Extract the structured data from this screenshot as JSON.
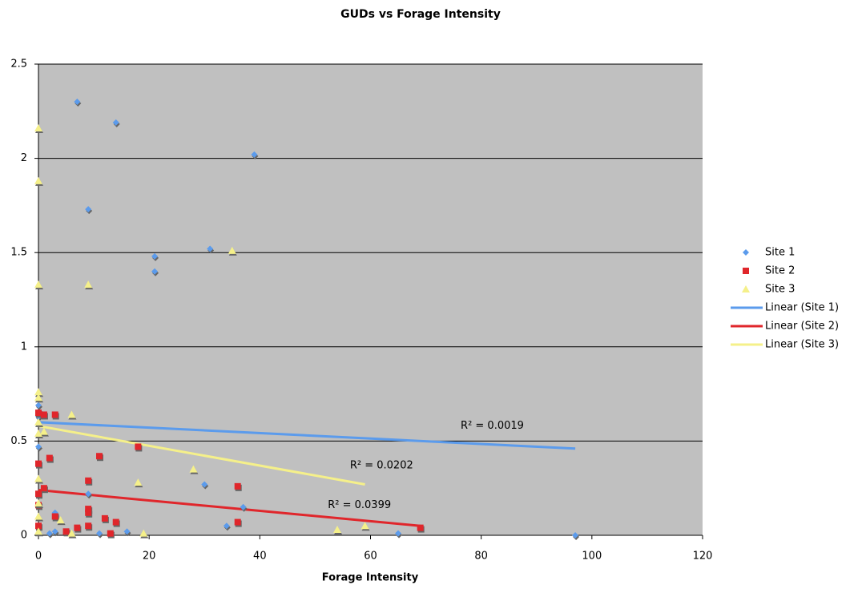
{
  "chart_data": {
    "type": "scatter",
    "title": "GUDs vs Forage Intensity",
    "x_label": "Forage Intensity",
    "xlim": [
      0,
      120
    ],
    "xticks": [
      0,
      20,
      40,
      60,
      80,
      100,
      120
    ],
    "ylim": [
      0,
      2.5
    ],
    "yticks": [
      0,
      0.5,
      1,
      1.5,
      2,
      2.5
    ],
    "grid": true,
    "legend": "right",
    "series": [
      {
        "name": "Site 1",
        "color": "#5b9bec",
        "marker": "diamond",
        "x": [
          7,
          14,
          39,
          9,
          21,
          21,
          31,
          0,
          0,
          0,
          9,
          30,
          37,
          34,
          3,
          2,
          3,
          11,
          16,
          65,
          97
        ],
        "values": [
          2.3,
          2.19,
          2.02,
          1.73,
          1.48,
          1.4,
          1.52,
          0.69,
          0.63,
          0.47,
          0.22,
          0.27,
          0.15,
          0.05,
          0.12,
          0.01,
          0.02,
          0.01,
          0.02,
          0.01,
          0
        ]
      },
      {
        "name": "Site 2",
        "color": "#e0262b",
        "marker": "square",
        "x": [
          0,
          1,
          3,
          2,
          0,
          1,
          0,
          0,
          11,
          18,
          9,
          9,
          9,
          12,
          14,
          3,
          7,
          9,
          5,
          13,
          36,
          36,
          69,
          0
        ],
        "values": [
          0.65,
          0.64,
          0.64,
          0.41,
          0.38,
          0.25,
          0.22,
          0.16,
          0.42,
          0.47,
          0.29,
          0.14,
          0.12,
          0.09,
          0.07,
          0.1,
          0.04,
          0.05,
          0.02,
          0.01,
          0.26,
          0.07,
          0.04,
          0.05
        ]
      },
      {
        "name": "Site 3",
        "color": "#f5f08a",
        "marker": "triangle",
        "x": [
          0,
          0,
          0,
          9,
          35,
          0,
          0,
          6,
          0,
          1,
          0,
          0,
          0,
          0,
          4,
          18,
          28,
          54,
          59,
          19,
          6,
          0
        ],
        "values": [
          2.16,
          1.88,
          1.33,
          1.33,
          1.51,
          0.76,
          0.73,
          0.64,
          0.6,
          0.55,
          0.54,
          0.3,
          0.17,
          0.1,
          0.08,
          0.28,
          0.35,
          0.03,
          0.05,
          0.01,
          0.01,
          0.02
        ]
      }
    ],
    "trendlines": [
      {
        "name": "Linear (Site 1)",
        "color": "#5b9bec",
        "x": [
          0,
          97
        ],
        "values": [
          0.6,
          0.46
        ],
        "annotation": "R² = 0.0019"
      },
      {
        "name": "Linear (Site 2)",
        "color": "#e0262b",
        "x": [
          0,
          69
        ],
        "values": [
          0.24,
          0.05
        ],
        "annotation": "R² = 0.0399"
      },
      {
        "name": "Linear (Site 3)",
        "color": "#f5f08a",
        "x": [
          0,
          59
        ],
        "values": [
          0.58,
          0.27
        ],
        "annotation": "R² = 0.0202"
      }
    ]
  }
}
